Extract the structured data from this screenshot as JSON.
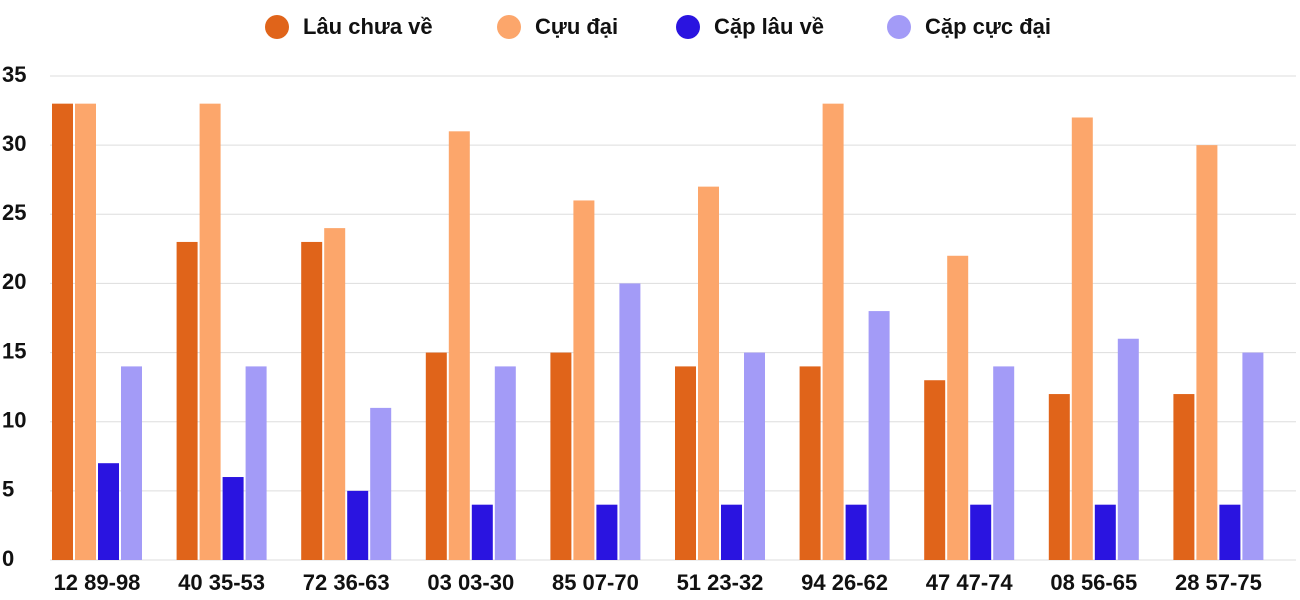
{
  "chart_data": {
    "type": "bar",
    "categories": [
      "12 89-98",
      "40 35-53",
      "72 36-63",
      "03 03-30",
      "85 07-70",
      "51 23-32",
      "94 26-62",
      "47 47-74",
      "08 56-65",
      "28 57-75"
    ],
    "series": [
      {
        "name": "Lâu chưa về",
        "color": "#e0641a",
        "values": [
          33,
          23,
          23,
          15,
          15,
          14,
          14,
          13,
          12,
          12
        ]
      },
      {
        "name": "Cựu đại",
        "color": "#fca66b",
        "values": [
          33,
          33,
          24,
          31,
          26,
          27,
          33,
          22,
          32,
          30
        ]
      },
      {
        "name": "Cặp lâu về",
        "color": "#2a14e0",
        "values": [
          7,
          6,
          5,
          4,
          4,
          4,
          4,
          4,
          4,
          4
        ]
      },
      {
        "name": "Cặp cực đại",
        "color": "#a39bf7",
        "values": [
          14,
          14,
          11,
          14,
          20,
          15,
          18,
          14,
          16,
          15
        ]
      }
    ],
    "ylim": [
      0,
      35
    ],
    "yticks": [
      0,
      5,
      10,
      15,
      20,
      25,
      30,
      35
    ],
    "grid": true,
    "legend": "top"
  }
}
